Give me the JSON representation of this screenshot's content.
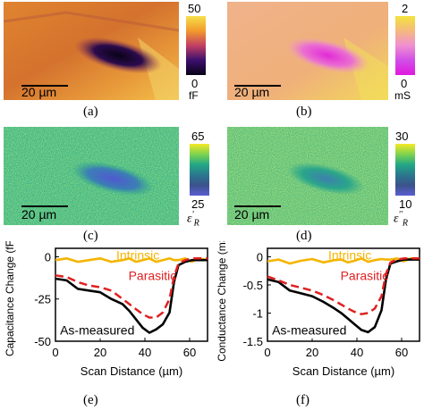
{
  "panels": {
    "a": {
      "caption": "(a)",
      "scalebar": "20 µm",
      "cbar_max": "50",
      "cbar_min": "0",
      "unit": "fF",
      "colors": [
        "#f5e04a",
        "#f29b2c",
        "#c23f63",
        "#3c0f6e",
        "#090316"
      ]
    },
    "b": {
      "caption": "(b)",
      "scalebar": "20 µm",
      "cbar_max": "2",
      "cbar_min": "0",
      "unit": "mS",
      "colors": [
        "#f2e33d",
        "#f5b97e",
        "#f08fd0",
        "#d04fe6",
        "#e018e0"
      ]
    },
    "c": {
      "caption": "(c)",
      "scalebar": "20 µm",
      "cbar_max": "65",
      "cbar_min": "25",
      "symbol_main": "ε",
      "symbol_sup": "'",
      "symbol_sub": "R",
      "colors": [
        "#f6e926",
        "#7fd34e",
        "#22a884",
        "#2a788e",
        "#3b528b",
        "#5b5fd2"
      ]
    },
    "d": {
      "caption": "(d)",
      "scalebar": "20 µm",
      "cbar_max": "30",
      "cbar_min": "10",
      "symbol_main": "ε",
      "symbol_sup": "''",
      "symbol_sub": "R",
      "colors": [
        "#f6e926",
        "#7fd34e",
        "#22a884",
        "#2a788e",
        "#3b528b",
        "#5b5fd2"
      ]
    },
    "e": {
      "caption": "(e)"
    },
    "f": {
      "caption": "(f)"
    }
  },
  "chart_data": [
    {
      "type": "line",
      "xlabel": "Scan Distance (µm)",
      "ylabel": "Capacitance Change (fF)",
      "xlim": [
        0,
        68
      ],
      "ylim": [
        -50,
        5
      ],
      "xticks": [
        "0",
        "20",
        "40",
        "60"
      ],
      "yticks": [
        "0",
        "-25",
        "-50"
      ],
      "x": [
        0,
        5,
        10,
        15,
        20,
        25,
        30,
        33,
        36,
        39,
        42,
        45,
        48,
        51,
        53,
        55,
        58,
        61,
        64,
        68
      ],
      "series": [
        {
          "name": "Intrinsic",
          "color": "#f5b400",
          "dash": false,
          "values": [
            -2,
            -1,
            -3,
            -2,
            -1,
            -3,
            -2,
            -1,
            -3,
            -2,
            -1,
            -3,
            -2,
            -1,
            -2,
            -2,
            -1,
            -3,
            -1,
            -2
          ]
        },
        {
          "name": "Parasitic",
          "color": "#e02020",
          "dash": true,
          "values": [
            -11,
            -12,
            -15,
            -17,
            -18,
            -20,
            -25,
            -28,
            -31,
            -34,
            -36,
            -36,
            -33,
            -25,
            -12,
            -4,
            -2,
            -1,
            -1,
            -1
          ]
        },
        {
          "name": "As-measured",
          "color": "#000000",
          "dash": false,
          "values": [
            -13,
            -14,
            -19,
            -20,
            -21,
            -25,
            -28,
            -32,
            -37,
            -42,
            -45,
            -43,
            -40,
            -33,
            -15,
            -5,
            -3,
            -2,
            -2,
            -2
          ]
        }
      ]
    },
    {
      "type": "line",
      "xlabel": "Scan Distance (µm)",
      "ylabel": "Conductance Change (mS)",
      "xlim": [
        0,
        68
      ],
      "ylim": [
        -1.5,
        0.15
      ],
      "xticks": [
        "0",
        "20",
        "40",
        "60"
      ],
      "yticks": [
        "0",
        "-0.5",
        "-1",
        "-1.5"
      ],
      "x": [
        0,
        5,
        10,
        15,
        20,
        25,
        30,
        33,
        36,
        39,
        42,
        45,
        48,
        51,
        53,
        55,
        58,
        61,
        64,
        68
      ],
      "series": [
        {
          "name": "Intrinsic",
          "color": "#f5b400",
          "dash": false,
          "values": [
            -0.08,
            -0.05,
            -0.12,
            -0.07,
            -0.04,
            -0.1,
            -0.06,
            -0.05,
            -0.1,
            -0.07,
            -0.03,
            -0.09,
            -0.06,
            -0.04,
            -0.05,
            -0.05,
            -0.03,
            -0.08,
            -0.03,
            -0.05
          ]
        },
        {
          "name": "Parasitic",
          "color": "#e02020",
          "dash": true,
          "values": [
            -0.35,
            -0.42,
            -0.5,
            -0.55,
            -0.6,
            -0.68,
            -0.78,
            -0.85,
            -0.92,
            -0.98,
            -1.02,
            -1.0,
            -0.92,
            -0.7,
            -0.3,
            -0.1,
            -0.05,
            -0.03,
            -0.03,
            -0.03
          ]
        },
        {
          "name": "As-measured",
          "color": "#000000",
          "dash": false,
          "values": [
            -0.4,
            -0.45,
            -0.6,
            -0.65,
            -0.7,
            -0.8,
            -0.92,
            -1.0,
            -1.1,
            -1.2,
            -1.3,
            -1.34,
            -1.25,
            -0.95,
            -0.4,
            -0.12,
            -0.08,
            -0.05,
            -0.05,
            -0.05
          ]
        }
      ]
    }
  ]
}
